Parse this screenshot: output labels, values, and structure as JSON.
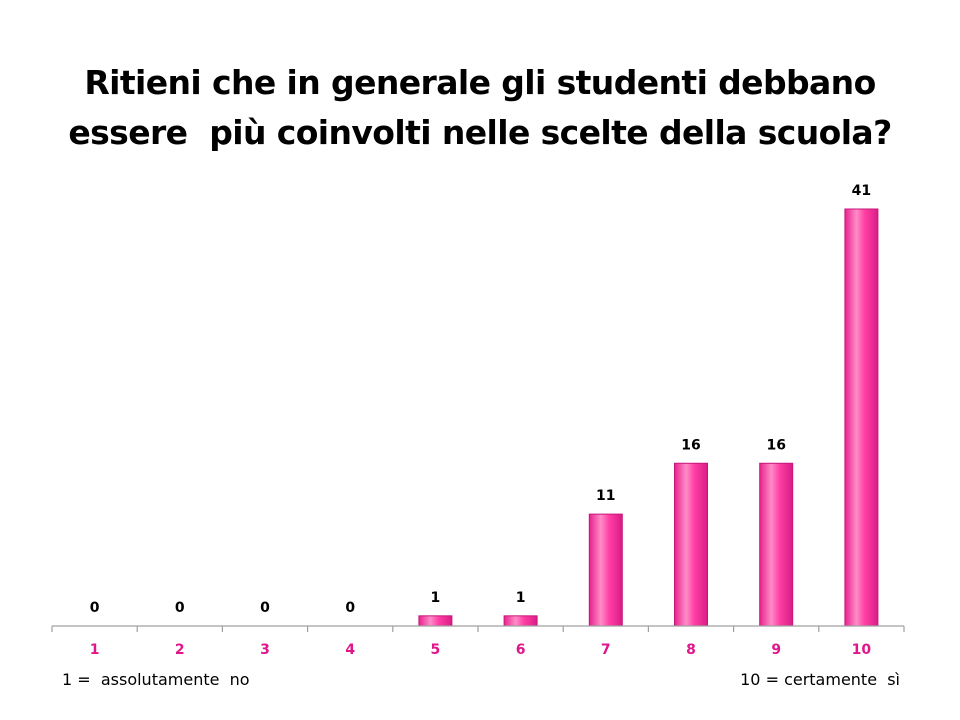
{
  "title": {
    "line1": "Ritieni che in generale gli studenti debbano",
    "line2": "essere  più coinvolti nelle scelte della scuola?"
  },
  "scale_notes": {
    "left": "1 =  assolutamente  no",
    "right": "10 = certamente  sì"
  },
  "colors": {
    "bar": "#ff3fa4",
    "bar_highlight": "#ff8cc8",
    "bar_edge": "#c8167a",
    "category_label": "#e0168c",
    "axis": "#a0a0a0"
  },
  "chart_data": {
    "type": "bar",
    "title": "Ritieni che in generale gli studenti debbano essere più coinvolti nelle scelte della scuola?",
    "categories": [
      "1",
      "2",
      "3",
      "4",
      "5",
      "6",
      "7",
      "8",
      "9",
      "10"
    ],
    "values": [
      0,
      0,
      0,
      0,
      1,
      1,
      11,
      16,
      16,
      41
    ],
    "data_labels": [
      "0",
      "0",
      "0",
      "0",
      "1",
      "1",
      "11",
      "16",
      "16",
      "41"
    ],
    "xlabel": "",
    "ylabel": "",
    "ylim": [
      0,
      41
    ],
    "grid": false,
    "legend": "none"
  }
}
